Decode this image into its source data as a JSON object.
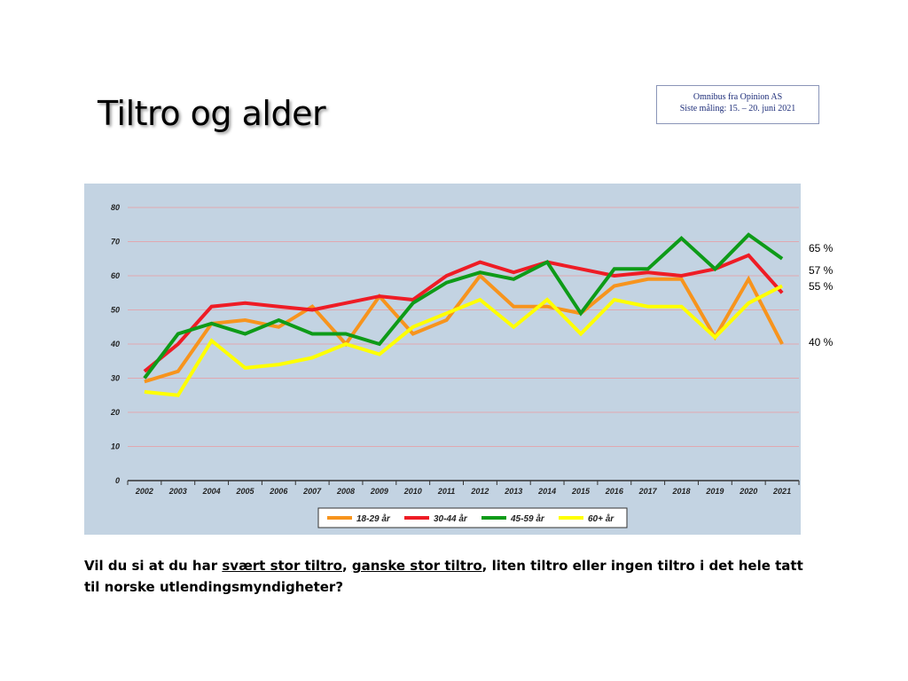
{
  "slide": {
    "title": "Tiltro og alder",
    "source_line1": "Omnibus fra Opinion AS",
    "source_line2": "Siste måling: 15. – 20. juni 2021"
  },
  "end_labels": [
    "65 %",
    "57 %",
    "55 %",
    "40 %"
  ],
  "question": {
    "part1": "Vil du si at du har ",
    "part2": "svært stor tiltro",
    "part3": ", ",
    "part4": "ganske stor tiltro",
    "part5": ", liten tiltro eller ingen tiltro i det hele tatt til norske utlendingsmyndigheter?"
  },
  "chart_data": {
    "type": "line",
    "title": "",
    "xlabel": "",
    "ylabel": "",
    "ylim": [
      0,
      80
    ],
    "yticks": [
      0,
      10,
      20,
      30,
      40,
      50,
      60,
      70,
      80
    ],
    "grid": true,
    "legend_position": "bottom",
    "background_color": "#c3d3e2",
    "x": [
      "2002",
      "2003",
      "2004",
      "2005",
      "2006",
      "2007",
      "2008",
      "2009",
      "2010",
      "2011",
      "2012",
      "2013",
      "2014",
      "2015",
      "2016",
      "2017",
      "2018",
      "2019",
      "2020",
      "2021"
    ],
    "series": [
      {
        "name": "18-29 år",
        "color": "#f7941d",
        "values": [
          29,
          32,
          46,
          47,
          45,
          51,
          40,
          54,
          43,
          47,
          60,
          51,
          51,
          49,
          57,
          59,
          59,
          42,
          59,
          40
        ]
      },
      {
        "name": "30-44 år",
        "color": "#ee1c25",
        "values": [
          32,
          40,
          51,
          52,
          51,
          50,
          52,
          54,
          53,
          60,
          64,
          61,
          64,
          62,
          60,
          61,
          60,
          62,
          66,
          55
        ]
      },
      {
        "name": "45-59 år",
        "color": "#0e9b18",
        "values": [
          30,
          43,
          46,
          43,
          47,
          43,
          43,
          40,
          52,
          58,
          61,
          59,
          64,
          49,
          62,
          62,
          71,
          62,
          72,
          65
        ]
      },
      {
        "name": "60+ år",
        "color": "#ffff00",
        "values": [
          26,
          25,
          41,
          33,
          34,
          36,
          40,
          37,
          45,
          49,
          53,
          45,
          53,
          43,
          53,
          51,
          51,
          42,
          52,
          57
        ]
      }
    ]
  }
}
